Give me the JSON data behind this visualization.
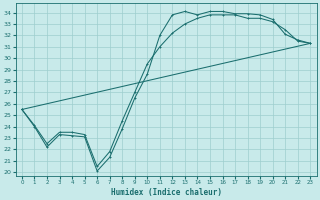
{
  "xlabel": "Humidex (Indice chaleur)",
  "bg_color": "#c8eaea",
  "line_color": "#1a6e6e",
  "grid_color": "#9ecece",
  "xlim": [
    -0.5,
    23.5
  ],
  "ylim": [
    19.7,
    34.8
  ],
  "xticks": [
    0,
    1,
    2,
    3,
    4,
    5,
    6,
    7,
    8,
    9,
    10,
    11,
    12,
    13,
    14,
    15,
    16,
    17,
    18,
    19,
    20,
    21,
    22,
    23
  ],
  "yticks": [
    20,
    21,
    22,
    23,
    24,
    25,
    26,
    27,
    28,
    29,
    30,
    31,
    32,
    33,
    34
  ],
  "line1_x": [
    0,
    1,
    2,
    3,
    4,
    5,
    6,
    7,
    8,
    9,
    10,
    11,
    12,
    13,
    14,
    15,
    16,
    17,
    18,
    19,
    20,
    21,
    22,
    23
  ],
  "line1_y": [
    25.5,
    24.0,
    22.2,
    23.3,
    23.2,
    23.1,
    20.1,
    21.3,
    23.8,
    26.5,
    28.6,
    32.0,
    33.8,
    34.1,
    33.8,
    34.1,
    34.1,
    33.9,
    33.9,
    33.8,
    33.4,
    32.1,
    31.6,
    31.3
  ],
  "line2_x": [
    0,
    1,
    2,
    3,
    4,
    5,
    6,
    7,
    8,
    9,
    10,
    11,
    12,
    13,
    14,
    15,
    16,
    17,
    18,
    19,
    20,
    21,
    22,
    23
  ],
  "line2_y": [
    25.5,
    24.1,
    22.5,
    23.5,
    23.5,
    23.3,
    20.5,
    21.8,
    24.5,
    27.0,
    29.5,
    31.0,
    32.2,
    33.0,
    33.5,
    33.8,
    33.8,
    33.8,
    33.5,
    33.5,
    33.2,
    32.5,
    31.5,
    31.3
  ],
  "line3_x": [
    0,
    23
  ],
  "line3_y": [
    25.5,
    31.3
  ],
  "figsize": [
    3.2,
    2.0
  ],
  "dpi": 100
}
